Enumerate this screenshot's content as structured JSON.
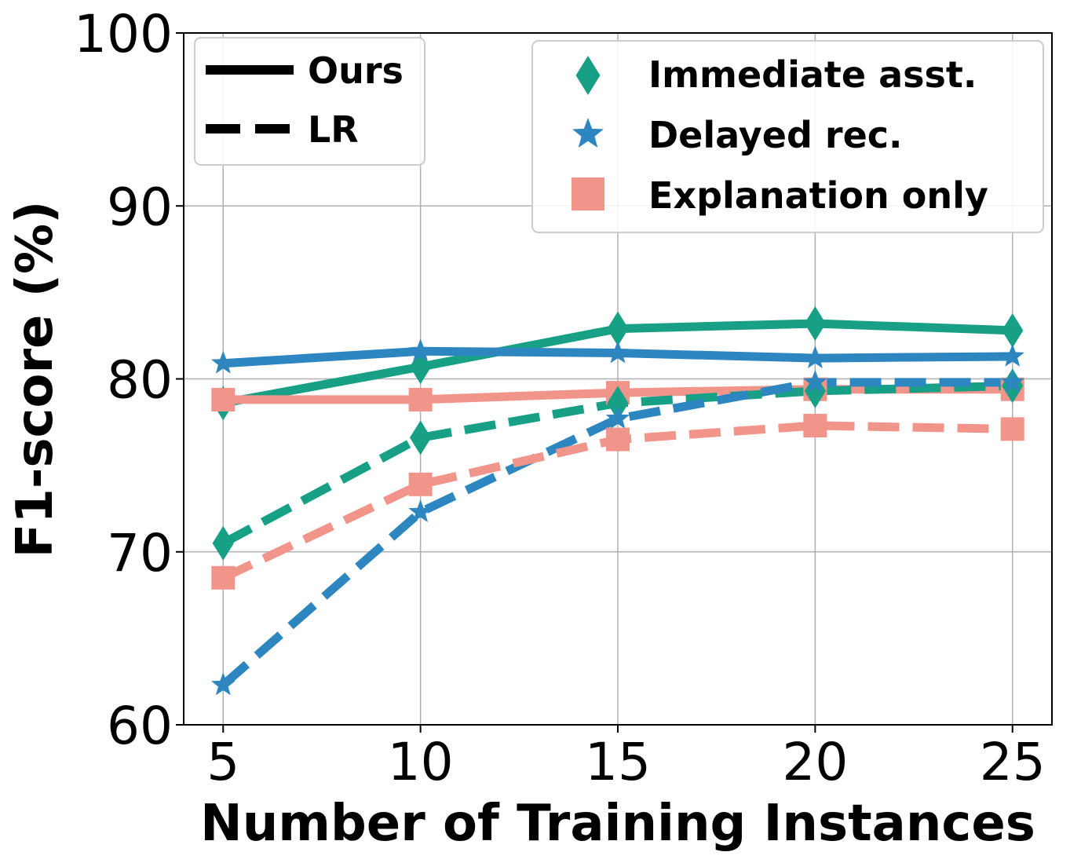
{
  "chart_data": {
    "type": "line",
    "title": "",
    "xlabel": "Number of Training Instances",
    "ylabel": "F1-score (%)",
    "x": [
      5,
      10,
      15,
      20,
      25
    ],
    "xticks": [
      "5",
      "10",
      "15",
      "20",
      "25"
    ],
    "yticks": [
      "60",
      "70",
      "80",
      "90",
      "100"
    ],
    "xlim": [
      4,
      26
    ],
    "ylim": [
      60,
      100
    ],
    "grid": true,
    "series": [
      {
        "name": "Immediate asst. (Ours)",
        "group": "Immediate asst.",
        "method": "Ours",
        "marker": "diamond",
        "color": "#17a085",
        "values": [
          78.6,
          80.7,
          82.9,
          83.2,
          82.8
        ]
      },
      {
        "name": "Delayed rec. (Ours)",
        "group": "Delayed rec.",
        "method": "Ours",
        "marker": "star",
        "color": "#2e86c1",
        "values": [
          80.9,
          81.6,
          81.5,
          81.2,
          81.3
        ]
      },
      {
        "name": "Explanation only (Ours)",
        "group": "Explanation only",
        "method": "Ours",
        "marker": "square",
        "color": "#f1948a",
        "values": [
          78.8,
          78.8,
          79.2,
          79.4,
          79.4
        ]
      },
      {
        "name": "Immediate asst. (LR)",
        "group": "Immediate asst.",
        "method": "LR",
        "marker": "diamond",
        "color": "#17a085",
        "values": [
          70.5,
          76.6,
          78.6,
          79.3,
          79.6
        ]
      },
      {
        "name": "Delayed rec. (LR)",
        "group": "Delayed rec.",
        "method": "LR",
        "marker": "star",
        "color": "#2e86c1",
        "values": [
          62.3,
          72.3,
          77.7,
          79.8,
          79.8
        ]
      },
      {
        "name": "Explanation only (LR)",
        "group": "Explanation only",
        "method": "LR",
        "marker": "square",
        "color": "#f1948a",
        "values": [
          68.5,
          73.9,
          76.5,
          77.3,
          77.1
        ]
      }
    ],
    "legend_style": {
      "position": "top-left",
      "entries": [
        {
          "label": "Ours",
          "style": "solid"
        },
        {
          "label": "LR",
          "style": "dashed"
        }
      ]
    },
    "legend_groups": {
      "position": "top-right",
      "entries": [
        {
          "label": "Immediate asst.",
          "marker": "diamond",
          "color": "#17a085"
        },
        {
          "label": "Delayed rec.",
          "marker": "star",
          "color": "#2e86c1"
        },
        {
          "label": "Explanation only",
          "marker": "square",
          "color": "#f1948a"
        }
      ]
    }
  }
}
